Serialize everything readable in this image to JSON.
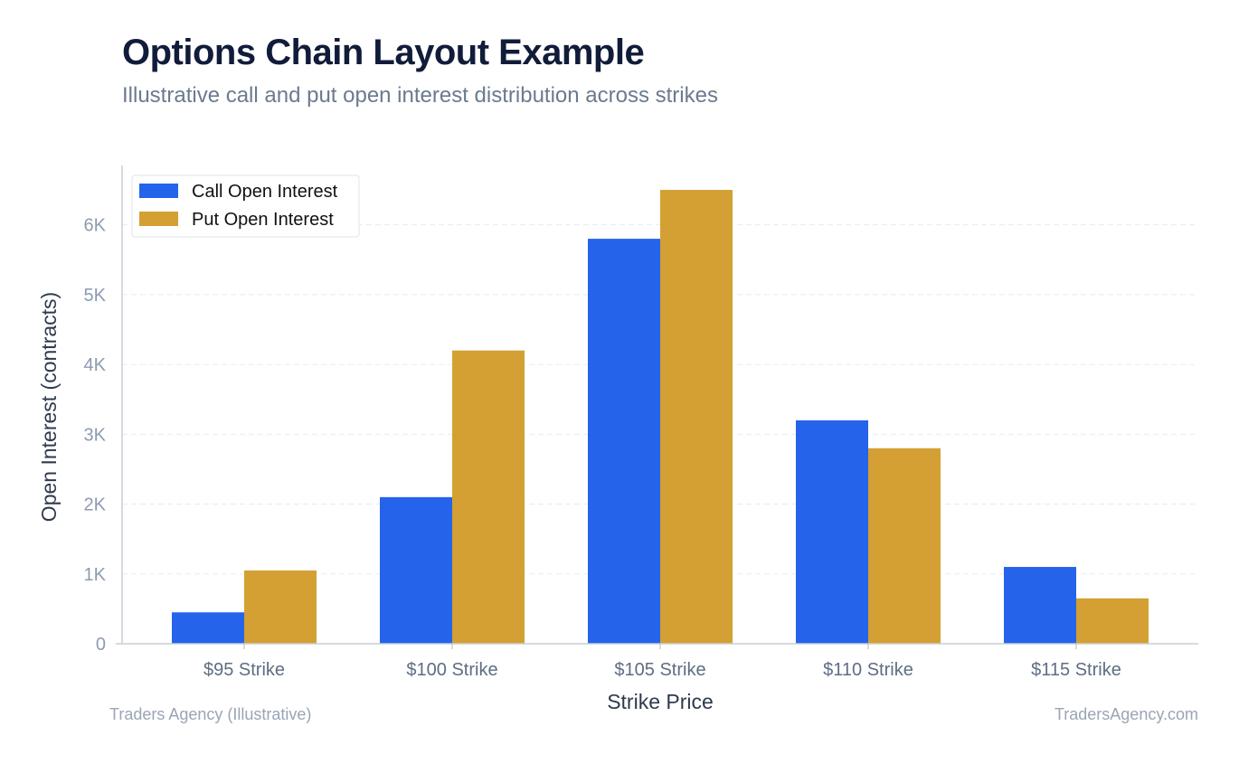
{
  "header": {
    "title": "Options Chain Layout Example",
    "subtitle": "Illustrative call and put open interest distribution across strikes"
  },
  "footer": {
    "source_left": "Traders Agency (Illustrative)",
    "source_right": "TradersAgency.com"
  },
  "colors": {
    "call": "#2563eb",
    "put": "#d4a033",
    "grid": "#e8ebf0",
    "axis": "#c8ced8"
  },
  "chart_data": {
    "type": "bar",
    "categories": [
      "$95 Strike",
      "$100 Strike",
      "$105 Strike",
      "$110 Strike",
      "$115 Strike"
    ],
    "series": [
      {
        "name": "Call Open Interest",
        "values": [
          450,
          2100,
          5800,
          3200,
          1100
        ]
      },
      {
        "name": "Put Open Interest",
        "values": [
          1050,
          4200,
          6500,
          2800,
          650
        ]
      }
    ],
    "xlabel": "Strike Price",
    "ylabel": "Open Interest (contracts)",
    "ylim": [
      0,
      6850
    ],
    "yticks": [
      0,
      1000,
      2000,
      3000,
      4000,
      5000,
      6000
    ],
    "ytick_labels": [
      "0",
      "1K",
      "2K",
      "3K",
      "4K",
      "5K",
      "6K"
    ],
    "grid": true,
    "legend_position": "top-left"
  }
}
